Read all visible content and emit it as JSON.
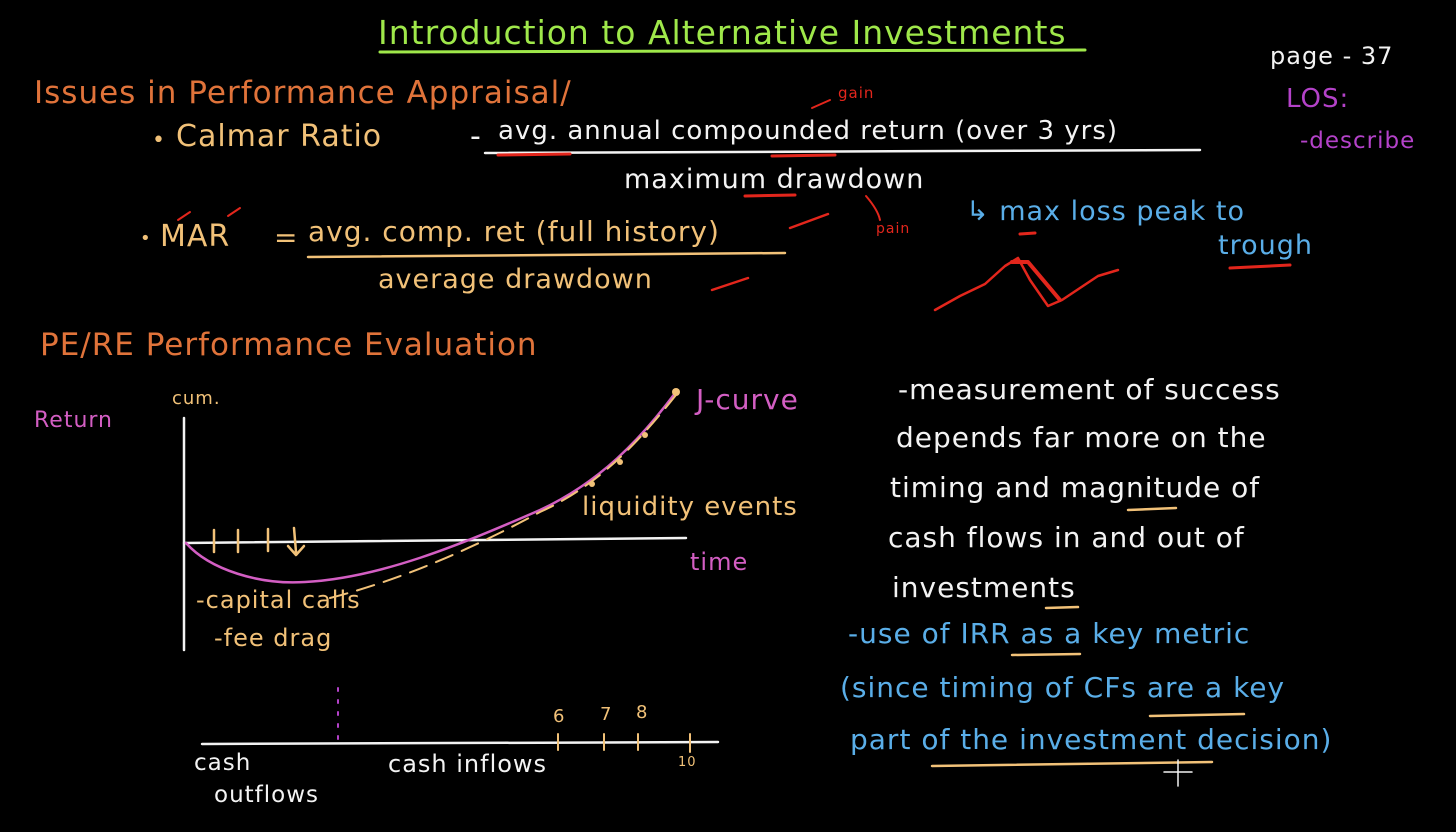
{
  "colors": {
    "background": "#000000",
    "green": "#9fe84a",
    "orange": "#e0733a",
    "yellow": "#f1c178",
    "white": "#f3f3f3",
    "blue": "#5aaee8",
    "purple": "#b442c9",
    "red": "#e3261c",
    "pink": "#d35ec3"
  },
  "title": "Introduction to Alternative Investments",
  "page_label": "page - 37",
  "los": {
    "label": "LOS:",
    "item": "-describe"
  },
  "section1": {
    "heading": "Issues in Performance Appraisal/",
    "calmar": {
      "bullet": "•",
      "label": "Calmar Ratio",
      "dash": "-",
      "numerator": "avg. annual compounded return (over 3 yrs)",
      "denominator": "maximum drawdown",
      "note_gain": "gain",
      "note_pain": "pain"
    },
    "mar": {
      "bullet": "•",
      "label": "MAR",
      "equals": "=",
      "numerator": "avg. comp. ret (full history)",
      "denominator": "average drawdown"
    },
    "drawdown_note_line1": "↳ max loss peak to",
    "drawdown_note_line2": "trough"
  },
  "section2": {
    "heading": "PE/RE Performance Evaluation",
    "graph": {
      "y_label_top": "cum.",
      "y_label_left": "Return",
      "curve_label": "J-curve",
      "x_label": "time",
      "liquidity_label": "liquidity events",
      "capital_calls": "-capital calls",
      "fee_drag": "-fee drag",
      "timeline_left_1": "cash",
      "timeline_left_2": "outflows",
      "timeline_mid": "cash inflows",
      "tick_6": "6",
      "tick_7": "7",
      "tick_8": "8",
      "tick_10": "10"
    },
    "notes": {
      "line1": "-measurement of success",
      "line2": "depends far more on the",
      "line3": "timing and magnitude of",
      "line4": "cash flows in and out of",
      "line5": "investments",
      "line6": "-use of IRR as a key metric",
      "line7": "(since timing of CFs are a key",
      "line8": "part of the investment decision)"
    }
  }
}
